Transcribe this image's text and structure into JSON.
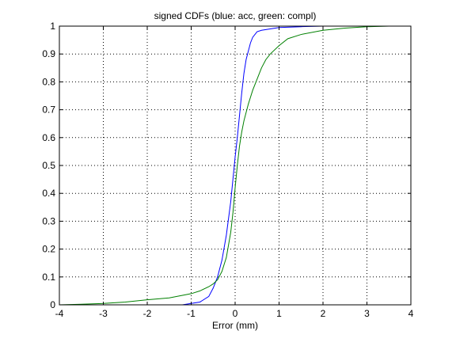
{
  "chart_data": {
    "type": "line",
    "title": "signed CDFs (blue: acc, green: compl)",
    "xlabel": "Error (mm)",
    "ylabel": "",
    "xlim": [
      -4,
      4
    ],
    "ylim": [
      0,
      1
    ],
    "xticks": [
      -4,
      -3,
      -2,
      -1,
      0,
      1,
      2,
      3,
      4
    ],
    "yticks": [
      0,
      0.1,
      0.2,
      0.3,
      0.4,
      0.5,
      0.6,
      0.7,
      0.8,
      0.9,
      1
    ],
    "grid": true,
    "series": [
      {
        "color": "#0000ff",
        "x": [
          -4,
          -3.0,
          -2.0,
          -1.2,
          -0.8,
          -0.6,
          -0.5,
          -0.4,
          -0.3,
          -0.2,
          -0.1,
          -0.05,
          0.0,
          0.05,
          0.1,
          0.15,
          0.2,
          0.25,
          0.3,
          0.35,
          0.4,
          0.5,
          0.6,
          0.8,
          1.0,
          1.5,
          2.0,
          2.5,
          3.0,
          3.5
        ],
        "y": [
          0,
          0.0,
          0.0,
          0.0,
          0.01,
          0.03,
          0.06,
          0.1,
          0.16,
          0.25,
          0.37,
          0.45,
          0.53,
          0.6,
          0.68,
          0.76,
          0.83,
          0.88,
          0.91,
          0.94,
          0.96,
          0.98,
          0.985,
          0.99,
          0.995,
          0.998,
          1.0,
          1.0,
          1.0,
          1.0
        ]
      },
      {
        "color": "#008000",
        "x": [
          -4,
          -3.5,
          -3.0,
          -2.5,
          -2.0,
          -1.5,
          -1.0,
          -0.8,
          -0.6,
          -0.5,
          -0.4,
          -0.3,
          -0.2,
          -0.1,
          -0.05,
          0.0,
          0.05,
          0.1,
          0.15,
          0.2,
          0.3,
          0.4,
          0.5,
          0.6,
          0.7,
          0.8,
          1.0,
          1.2,
          1.5,
          2.0,
          2.5,
          3.0,
          3.5
        ],
        "y": [
          0,
          0.002,
          0.005,
          0.01,
          0.018,
          0.025,
          0.04,
          0.05,
          0.065,
          0.075,
          0.09,
          0.12,
          0.17,
          0.26,
          0.33,
          0.42,
          0.5,
          0.57,
          0.62,
          0.66,
          0.72,
          0.77,
          0.81,
          0.85,
          0.88,
          0.9,
          0.93,
          0.955,
          0.97,
          0.985,
          0.993,
          0.998,
          1.0
        ]
      }
    ]
  }
}
